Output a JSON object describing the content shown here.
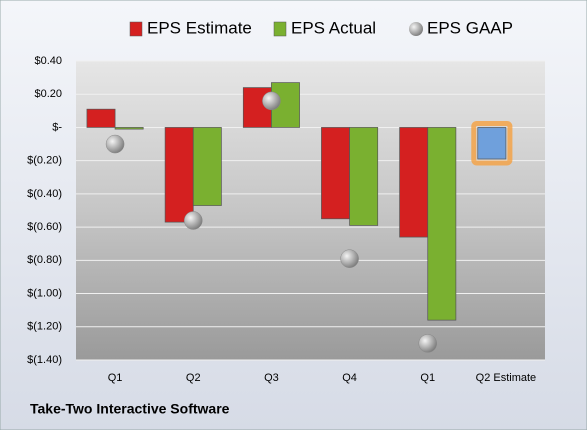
{
  "chart_data": {
    "type": "bar",
    "footer": "Take-Two Interactive Software",
    "categories": [
      "Q1",
      "Q2",
      "Q3",
      "Q4",
      "Q1",
      "Q2 Estimate"
    ],
    "series": [
      {
        "name": "EPS Estimate",
        "color": "#d42020",
        "colors": [
          "#d42020",
          "#d42020",
          "#d42020",
          "#d42020",
          "#d42020",
          "#6fa0dc"
        ],
        "values": [
          0.11,
          -0.57,
          0.24,
          -0.55,
          -0.66,
          -0.19
        ]
      },
      {
        "name": "EPS Actual",
        "color": "#7ab030",
        "values": [
          -0.01,
          -0.47,
          0.27,
          -0.59,
          -1.16,
          null
        ]
      },
      {
        "name": "EPS GAAP",
        "color": "#a8a8a8",
        "marker": "sphere",
        "values": [
          -0.1,
          -0.56,
          0.16,
          -0.79,
          -1.3,
          null
        ]
      }
    ],
    "ylim": [
      -1.4,
      0.4
    ],
    "yticks": [
      {
        "value": 0.4,
        "label": "$0.40"
      },
      {
        "value": 0.2,
        "label": "$0.20"
      },
      {
        "value": 0,
        "label": "$-"
      },
      {
        "value": -0.2,
        "label": "$(0.20)"
      },
      {
        "value": -0.4,
        "label": "$(0.40)"
      },
      {
        "value": -0.6,
        "label": "$(0.60)"
      },
      {
        "value": -0.8,
        "label": "$(0.80)"
      },
      {
        "value": -1.0,
        "label": "$(1.00)"
      },
      {
        "value": -1.2,
        "label": "$(1.20)"
      },
      {
        "value": -1.4,
        "label": "$(1.40)"
      }
    ],
    "grid": true
  }
}
